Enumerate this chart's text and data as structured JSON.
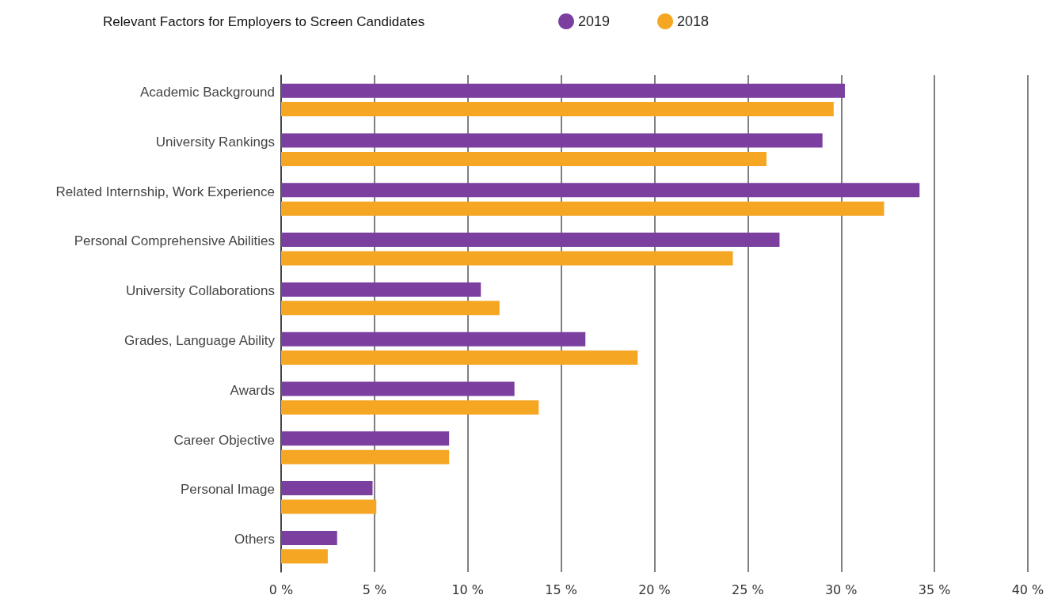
{
  "chart_data": {
    "type": "bar",
    "orientation": "horizontal",
    "title": "Relevant Factors for Employers to Screen Candidates",
    "categories": [
      "Academic Background",
      "University Rankings",
      "Related Internship, Work Experience",
      "Personal Comprehensive Abilities",
      "University Collaborations",
      "Grades, Language Ability",
      "Awards",
      "Career Objective",
      "Personal Image",
      "Others"
    ],
    "series": [
      {
        "name": "2019",
        "color": "#7b3fa0",
        "values": [
          30.2,
          29.0,
          34.2,
          26.7,
          10.7,
          16.3,
          12.5,
          9.0,
          4.9,
          3.0
        ]
      },
      {
        "name": "2018",
        "color": "#f5a623",
        "values": [
          29.6,
          26.0,
          32.3,
          24.2,
          11.7,
          19.1,
          13.8,
          9.0,
          5.1,
          2.5
        ]
      }
    ],
    "xlim": [
      0,
      40
    ],
    "xticks": [
      {
        "value": 0,
        "label": "0 %"
      },
      {
        "value": 5,
        "label": "5 %"
      },
      {
        "value": 10,
        "label": "10 %"
      },
      {
        "value": 15,
        "label": "15 %"
      },
      {
        "value": 20,
        "label": "20 %"
      },
      {
        "value": 25,
        "label": "25 %"
      },
      {
        "value": 30,
        "label": "30 %"
      },
      {
        "value": 35,
        "label": "35 %"
      },
      {
        "value": 40,
        "label": "40 %"
      }
    ],
    "grid": "x",
    "legend": "top right"
  }
}
